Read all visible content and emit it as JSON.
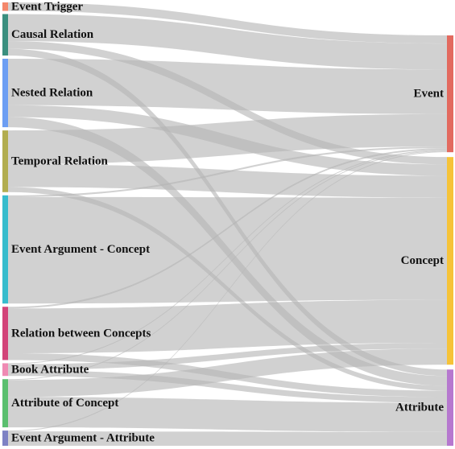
{
  "chart_data": {
    "type": "sankey",
    "sources": [
      {
        "id": "event_trigger",
        "label": "Event Trigger",
        "color": "#f4876b"
      },
      {
        "id": "causal_relation",
        "label": "Causal Relation",
        "color": "#3a8f7f"
      },
      {
        "id": "nested_relation",
        "label": "Nested Relation",
        "color": "#6d9ef3"
      },
      {
        "id": "temporal_relation",
        "label": "Temporal Relation",
        "color": "#b2ad4f"
      },
      {
        "id": "event_argument_concept",
        "label": "Event Argument - Concept",
        "color": "#36bccd"
      },
      {
        "id": "relation_between_concepts",
        "label": "Relation between Concepts",
        "color": "#d24479"
      },
      {
        "id": "book_attribute",
        "label": "Book Attribute",
        "color": "#ef8ab3"
      },
      {
        "id": "attribute_of_concept",
        "label": "Attribute of Concept",
        "color": "#5bbf6f"
      },
      {
        "id": "event_argument_attribute",
        "label": "Event Argument - Attribute",
        "color": "#7e82c4"
      }
    ],
    "targets": [
      {
        "id": "event",
        "label": "Event",
        "color": "#e36a5f"
      },
      {
        "id": "concept",
        "label": "Concept",
        "color": "#f6c338"
      },
      {
        "id": "attribute",
        "label": "Attribute",
        "color": "#b678cf"
      }
    ],
    "flows": [
      {
        "source": "event_trigger",
        "target": "event",
        "value": 10
      },
      {
        "source": "causal_relation",
        "target": "event",
        "value": 32
      },
      {
        "source": "causal_relation",
        "target": "concept",
        "value": 9
      },
      {
        "source": "causal_relation",
        "target": "attribute",
        "value": 8
      },
      {
        "source": "nested_relation",
        "target": "event",
        "value": 55
      },
      {
        "source": "nested_relation",
        "target": "concept",
        "value": 14
      },
      {
        "source": "nested_relation",
        "target": "attribute",
        "value": 12
      },
      {
        "source": "temporal_relation",
        "target": "event",
        "value": 40
      },
      {
        "source": "temporal_relation",
        "target": "concept",
        "value": 27
      },
      {
        "source": "temporal_relation",
        "target": "attribute",
        "value": 6
      },
      {
        "source": "event_argument_concept",
        "target": "event",
        "value": 2
      },
      {
        "source": "event_argument_concept",
        "target": "concept",
        "value": 126
      },
      {
        "source": "relation_between_concepts",
        "target": "event",
        "value": 2
      },
      {
        "source": "relation_between_concepts",
        "target": "concept",
        "value": 53
      },
      {
        "source": "relation_between_concepts",
        "target": "attribute",
        "value": 8
      },
      {
        "source": "book_attribute",
        "target": "event",
        "value": 1
      },
      {
        "source": "book_attribute",
        "target": "concept",
        "value": 7
      },
      {
        "source": "book_attribute",
        "target": "attribute",
        "value": 7
      },
      {
        "source": "attribute_of_concept",
        "target": "event",
        "value": 1
      },
      {
        "source": "attribute_of_concept",
        "target": "concept",
        "value": 20
      },
      {
        "source": "attribute_of_concept",
        "target": "attribute",
        "value": 36
      },
      {
        "source": "event_argument_attribute",
        "target": "event",
        "value": 1
      },
      {
        "source": "event_argument_attribute",
        "target": "attribute",
        "value": 17
      }
    ]
  }
}
